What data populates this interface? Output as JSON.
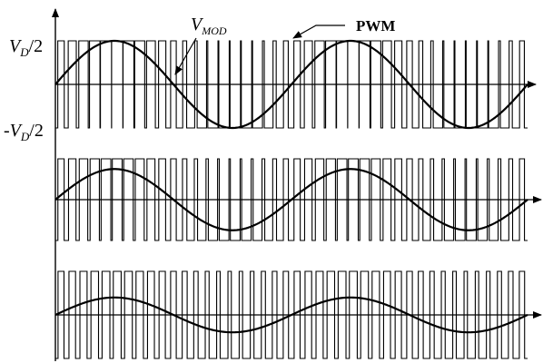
{
  "labels": {
    "vpos": "V",
    "vpos_sub": "D",
    "vpos_tail": "/2",
    "vneg_head": "-V",
    "vneg_sub": "D",
    "vneg_tail": "/2",
    "vmod": "V",
    "vmod_sub": "MOD",
    "pwm": "PWM"
  },
  "waveforms": [
    {
      "name": "top-panel",
      "modulation_index": 1.0,
      "cycles": 2,
      "pulses_per_cycle": 21
    },
    {
      "name": "middle-panel",
      "modulation_index": 0.75,
      "cycles": 2,
      "pulses_per_cycle": 21
    },
    {
      "name": "bottom-panel",
      "modulation_index": 0.4,
      "cycles": 2,
      "pulses_per_cycle": 21
    }
  ],
  "colors": {
    "ink": "#000000",
    "background": "#ffffff"
  }
}
